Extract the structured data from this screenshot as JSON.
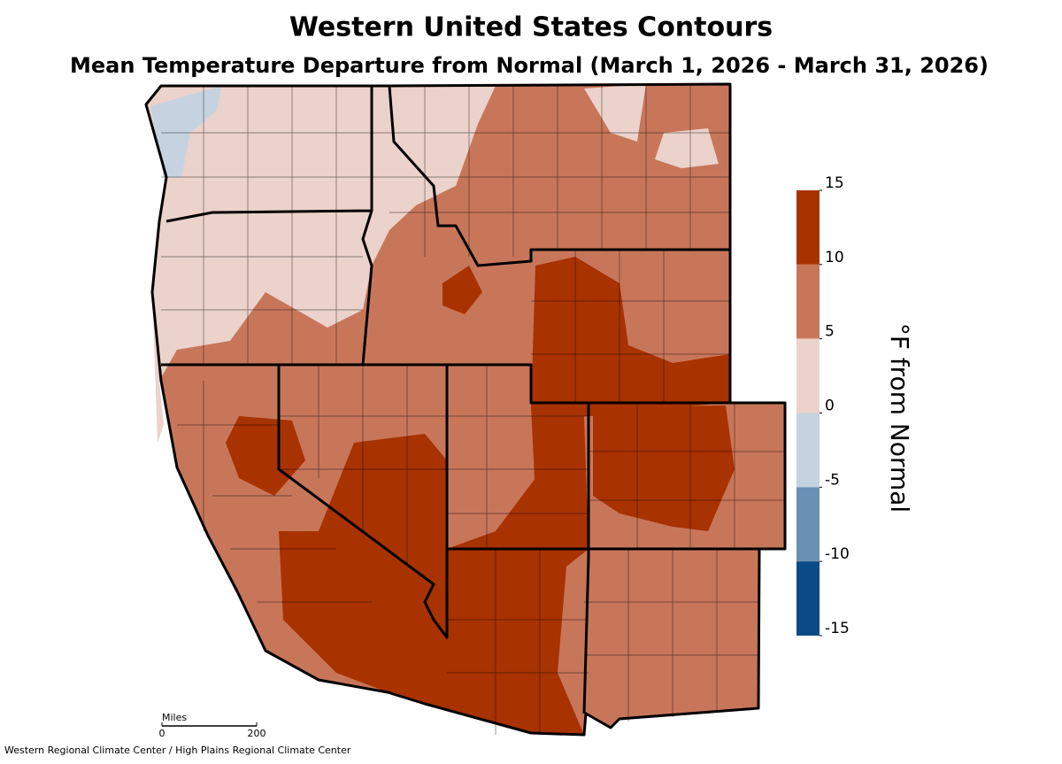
{
  "header": {
    "title": "Western United States Contours",
    "subtitle": "Mean Temperature Departure from Normal (March 1, 2026 - March 31, 2026)"
  },
  "legend": {
    "label": "°F from Normal",
    "ticks": [
      15,
      10,
      5,
      0,
      -5,
      -10,
      -15
    ],
    "bins": [
      {
        "range": [
          10,
          15
        ],
        "color": "#a83200"
      },
      {
        "range": [
          5,
          10
        ],
        "color": "#c8765a"
      },
      {
        "range": [
          0,
          5
        ],
        "color": "#ebd2ca"
      },
      {
        "range": [
          -5,
          0
        ],
        "color": "#c5d3e0"
      },
      {
        "range": [
          -10,
          -5
        ],
        "color": "#6a90b4"
      },
      {
        "range": [
          -15,
          -10
        ],
        "color": "#0b4a85"
      }
    ]
  },
  "scale_bar": {
    "unit": "Miles",
    "ticks": [
      0,
      200
    ]
  },
  "credit": "Western Regional Climate Center / High Plains Regional Climate Center"
}
